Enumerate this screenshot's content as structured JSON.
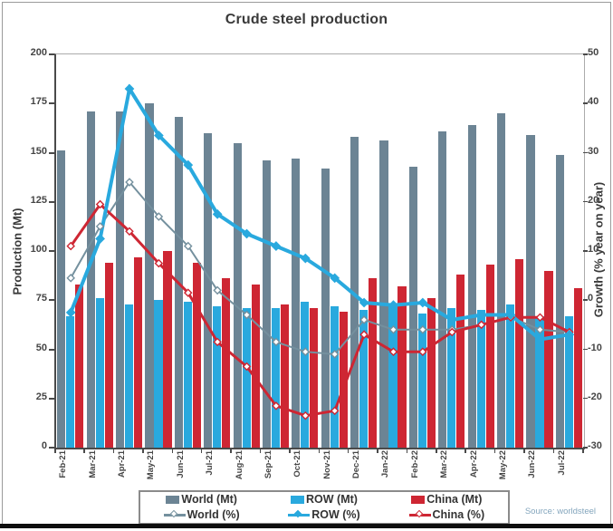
{
  "title": "Crude steel production",
  "source": "Source: worldsteel",
  "colors": {
    "world_bar": "#6C8494",
    "row_bar": "#29A9DE",
    "china_bar": "#CE2633",
    "world_line": "#74909E",
    "row_line": "#29A9DE",
    "china_line": "#CE2633",
    "text": "#3a3a3a",
    "axis": "#4a4a4a"
  },
  "legend": {
    "items": [
      {
        "label": "World (Mt)"
      },
      {
        "label": "ROW (Mt)"
      },
      {
        "label": "China (Mt)"
      },
      {
        "label": "World (%)"
      },
      {
        "label": "ROW (%)"
      },
      {
        "label": "China (%)"
      }
    ]
  },
  "chart_data": {
    "type": "bar",
    "subtype": "grouped bars with overlaid lines",
    "title": "Crude steel production",
    "categories": [
      "Feb-21",
      "Mar-21",
      "Apr-21",
      "May-21",
      "Jun-21",
      "Jul-21",
      "Aug-21",
      "Sep-21",
      "Oct-21",
      "Nov-21",
      "Dec-21",
      "Jan-22",
      "Feb-22",
      "Mar-22",
      "Apr-22",
      "May-22",
      "Jun-22",
      "Jul-22"
    ],
    "bar_series": [
      {
        "name": "World (Mt)",
        "axis": "left",
        "color_key": "world_bar",
        "values": [
          151,
          171,
          171,
          175,
          168,
          160,
          155,
          146,
          147,
          142,
          158,
          156,
          143,
          161,
          164,
          170,
          159,
          149
        ]
      },
      {
        "name": "ROW (Mt)",
        "axis": "left",
        "color_key": "row_bar",
        "values": [
          67,
          76,
          73,
          75,
          74,
          72,
          71,
          71,
          74,
          72,
          70,
          73,
          68,
          71,
          70,
          73,
          67,
          67
        ]
      },
      {
        "name": "China (Mt)",
        "axis": "left",
        "color_key": "china_bar",
        "values": [
          83,
          94,
          97,
          100,
          94,
          86,
          83,
          73,
          71,
          69,
          86,
          82,
          76,
          88,
          93,
          96,
          90,
          81
        ]
      }
    ],
    "line_series": [
      {
        "name": "World (%)",
        "axis": "right",
        "color_key": "world_line",
        "marker": "open-diamond",
        "width": 2,
        "values": [
          4.5,
          15,
          24,
          17,
          11,
          2,
          -3,
          -8.5,
          -10.5,
          -11,
          -4,
          -6,
          -6,
          -6,
          -5,
          -3.5,
          -6,
          -6.5
        ]
      },
      {
        "name": "China (%)",
        "axis": "right",
        "color_key": "china_line",
        "marker": "open-diamond",
        "width": 3,
        "values": [
          11,
          19.5,
          14,
          7.5,
          1.5,
          -8.5,
          -13.5,
          -21.5,
          -23.5,
          -22.5,
          -7,
          -10.5,
          -10.5,
          -6.5,
          -5,
          -3.5,
          -3.5,
          -6.5
        ]
      },
      {
        "name": "ROW (%)",
        "axis": "right",
        "color_key": "row_line",
        "marker": "filled-diamond",
        "width": 4,
        "values": [
          -2.5,
          12.5,
          43,
          33.5,
          27.5,
          17.5,
          13.5,
          11,
          8.5,
          4.5,
          -0.5,
          -1,
          -0.5,
          -4,
          -3,
          -3,
          -8,
          -7
        ]
      }
    ],
    "left_axis": {
      "label": "Production (Mt)",
      "min": 0,
      "max": 200,
      "ticks": [
        0,
        25,
        50,
        75,
        100,
        125,
        150,
        175,
        200
      ]
    },
    "right_axis": {
      "label": "Growth (% year on year)",
      "min": -30,
      "max": 50,
      "ticks": [
        50,
        40,
        30,
        20,
        10,
        0,
        -10,
        -20,
        -30
      ]
    },
    "grid": false,
    "legend_position": "bottom"
  }
}
